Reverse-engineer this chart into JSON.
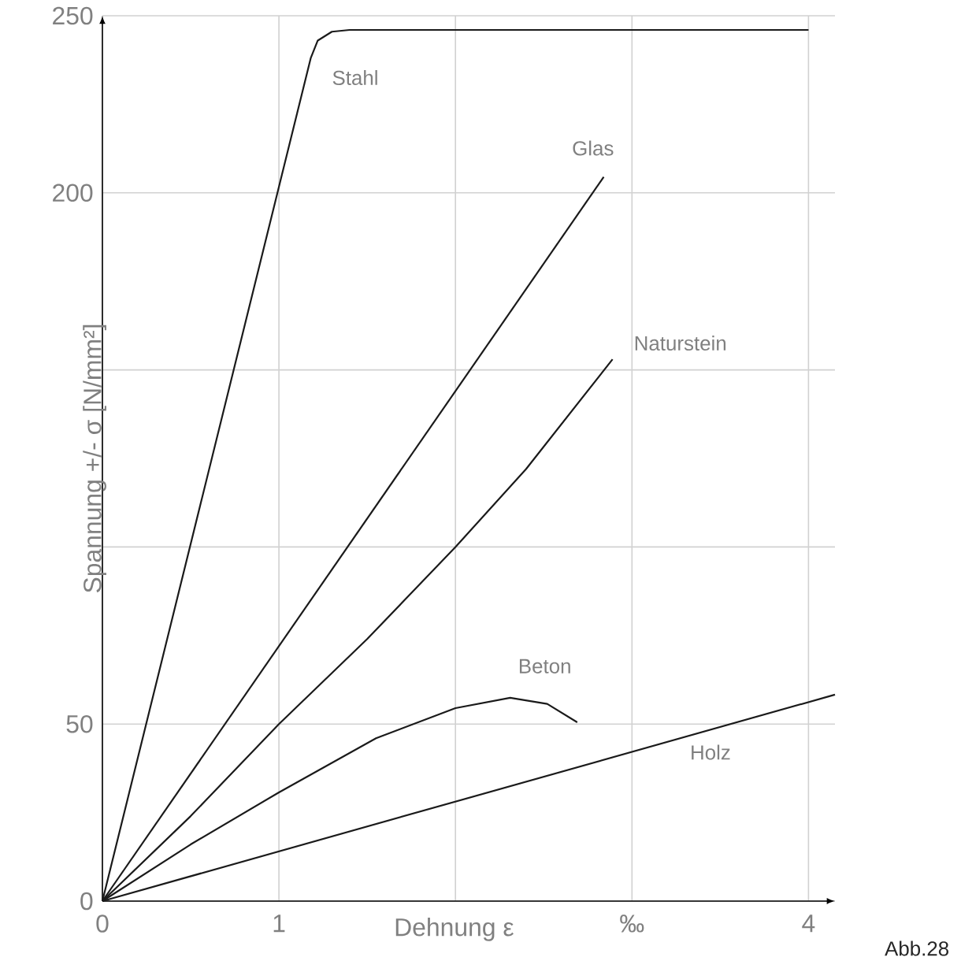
{
  "chart_data": {
    "type": "line",
    "xlabel": "Dehnung ε",
    "ylabel": "Spannung +/- σ   [N/mm²]",
    "annotations": [
      "Abb.28"
    ],
    "xlim": [
      0,
      4.15
    ],
    "ylim": [
      0,
      250
    ],
    "xticks": [
      0,
      1,
      {
        "value": 2,
        "label": null
      },
      {
        "value": 3,
        "label": "‰"
      },
      4
    ],
    "yticks": [
      0,
      50,
      {
        "value": 100,
        "label": null
      },
      {
        "value": 150,
        "label": null
      },
      200,
      250
    ],
    "grid": true,
    "marker": "none",
    "line_style": "solid",
    "series": [
      {
        "name": "Stahl",
        "color": "#1a1a1a",
        "x": [
          0,
          1.18,
          1.22,
          1.3,
          1.4,
          4
        ],
        "values": [
          0,
          238,
          243,
          245.5,
          246,
          246
        ]
      },
      {
        "name": "Glas",
        "color": "#1a1a1a",
        "x": [
          0,
          2.84
        ],
        "values": [
          0,
          204.5
        ]
      },
      {
        "name": "Naturstein",
        "color": "#1a1a1a",
        "x": [
          0,
          0.5,
          1,
          1.5,
          2,
          2.4,
          2.89
        ],
        "values": [
          0,
          24,
          50,
          74,
          100,
          122,
          153
        ]
      },
      {
        "name": "Beton",
        "color": "#1a1a1a",
        "x": [
          0,
          0.5,
          1,
          1.55,
          2,
          2.31,
          2.52,
          2.69
        ],
        "values": [
          0,
          16,
          30.7,
          46,
          54.5,
          57.4,
          55.7,
          50.5
        ]
      },
      {
        "name": "Holz",
        "color": "#1a1a1a",
        "x": [
          0,
          4.15
        ],
        "values": [
          0,
          58.3
        ]
      }
    ]
  }
}
